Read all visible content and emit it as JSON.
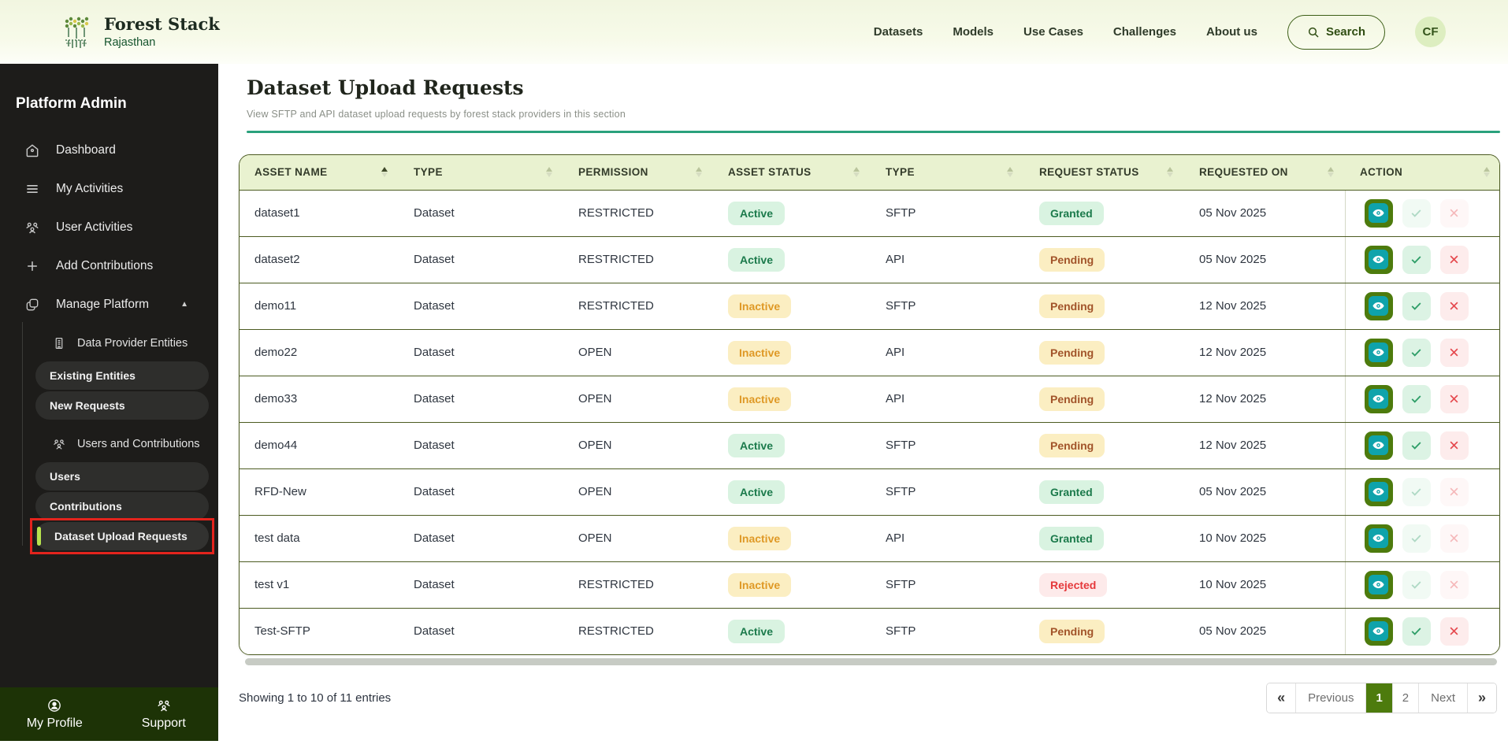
{
  "header": {
    "brand": {
      "title": "Forest Stack",
      "subtitle": "Rajasthan"
    },
    "nav": [
      "Datasets",
      "Models",
      "Use Cases",
      "Challenges",
      "About us"
    ],
    "search_label": "Search",
    "avatar_initials": "CF"
  },
  "sidebar": {
    "title": "Platform Admin",
    "items": [
      "Dashboard",
      "My Activities",
      "User Activities",
      "Add Contributions",
      "Manage Platform"
    ],
    "submenu": {
      "group1_label": "Data Provider Entities",
      "group1_children": [
        "Existing Entities",
        "New Requests"
      ],
      "group2_label": "Users and Contributions",
      "group2_children": [
        "Users",
        "Contributions",
        "Dataset Upload Requests"
      ],
      "active_item": "Dataset Upload Requests"
    },
    "footer": [
      "My Profile",
      "Support"
    ]
  },
  "main": {
    "title": "Dataset Upload Requests",
    "subtitle": "View SFTP and API dataset upload requests by forest stack providers in this section",
    "table": {
      "columns": [
        "ASSET NAME",
        "TYPE",
        "PERMISSION",
        "ASSET STATUS",
        "TYPE",
        "REQUEST STATUS",
        "REQUESTED ON",
        "ACTION"
      ],
      "sorted_column": "ASSET NAME",
      "rows": [
        {
          "asset_name": "dataset1",
          "type": "Dataset",
          "permission": "RESTRICTED",
          "asset_status": "Active",
          "upload_type": "SFTP",
          "request_status": "Granted",
          "requested_on": "05 Nov 2025",
          "actions_enabled": false
        },
        {
          "asset_name": "dataset2",
          "type": "Dataset",
          "permission": "RESTRICTED",
          "asset_status": "Active",
          "upload_type": "API",
          "request_status": "Pending",
          "requested_on": "05 Nov 2025",
          "actions_enabled": true
        },
        {
          "asset_name": "demo11",
          "type": "Dataset",
          "permission": "RESTRICTED",
          "asset_status": "Inactive",
          "upload_type": "SFTP",
          "request_status": "Pending",
          "requested_on": "12 Nov 2025",
          "actions_enabled": true
        },
        {
          "asset_name": "demo22",
          "type": "Dataset",
          "permission": "OPEN",
          "asset_status": "Inactive",
          "upload_type": "API",
          "request_status": "Pending",
          "requested_on": "12 Nov 2025",
          "actions_enabled": true
        },
        {
          "asset_name": "demo33",
          "type": "Dataset",
          "permission": "OPEN",
          "asset_status": "Inactive",
          "upload_type": "API",
          "request_status": "Pending",
          "requested_on": "12 Nov 2025",
          "actions_enabled": true
        },
        {
          "asset_name": "demo44",
          "type": "Dataset",
          "permission": "OPEN",
          "asset_status": "Active",
          "upload_type": "SFTP",
          "request_status": "Pending",
          "requested_on": "12 Nov 2025",
          "actions_enabled": true
        },
        {
          "asset_name": "RFD-New",
          "type": "Dataset",
          "permission": "OPEN",
          "asset_status": "Active",
          "upload_type": "SFTP",
          "request_status": "Granted",
          "requested_on": "05 Nov 2025",
          "actions_enabled": false
        },
        {
          "asset_name": "test data",
          "type": "Dataset",
          "permission": "OPEN",
          "asset_status": "Inactive",
          "upload_type": "API",
          "request_status": "Granted",
          "requested_on": "10 Nov 2025",
          "actions_enabled": false
        },
        {
          "asset_name": "test v1",
          "type": "Dataset",
          "permission": "RESTRICTED",
          "asset_status": "Inactive",
          "upload_type": "SFTP",
          "request_status": "Rejected",
          "requested_on": "10 Nov 2025",
          "actions_enabled": false
        },
        {
          "asset_name": "Test-SFTP",
          "type": "Dataset",
          "permission": "RESTRICTED",
          "asset_status": "Active",
          "upload_type": "SFTP",
          "request_status": "Pending",
          "requested_on": "05 Nov 2025",
          "actions_enabled": true
        }
      ]
    },
    "footer": {
      "showing_text": "Showing 1 to 10 of 11 entries",
      "pagination": {
        "first_label": "«",
        "prev_label": "Previous",
        "pages": [
          "1",
          "2"
        ],
        "active_page": "1",
        "next_label": "Next",
        "last_label": "»"
      }
    }
  },
  "colors": {
    "accent_olive": "#4d7b0d",
    "accent_teal": "#0fa3ab",
    "divider_green": "#2aa17c",
    "badge_green_bg": "#d9f3e1",
    "badge_yellow_bg": "#fbeec2",
    "badge_red_bg": "#fdeaea",
    "sidebar_bg": "#1d1c1a",
    "sidebar_footer_bg": "#1d3306",
    "table_header_bg": "#e9f2d0",
    "row_border": "#4c5b21",
    "annotation_red": "#e3241d",
    "active_indicator": "#b7e34d"
  }
}
